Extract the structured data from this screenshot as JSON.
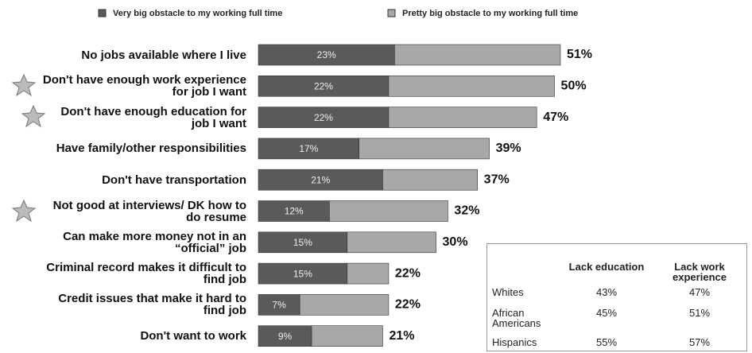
{
  "chart_data": {
    "type": "stacked-bar-horizontal",
    "categories": [
      "No jobs available where I live",
      "Don't have enough work experience for job I want",
      "Don't have enough education for job I want",
      "Have family/other responsibilities",
      "Don't have transportation",
      "Not good at interviews/ DK how to do resume",
      "Can make more money not in an “official” job",
      "Criminal record makes it difficult to find job",
      "Credit issues that make it hard to find job",
      "Don't want to work"
    ],
    "series": [
      {
        "name": "Very big obstacle to my working full time",
        "color": "#5a5a5a",
        "values": [
          23,
          22,
          22,
          17,
          21,
          12,
          15,
          15,
          7,
          9
        ],
        "value_labels": [
          "23%",
          "22%",
          "22%",
          "17%",
          "21%",
          "12%",
          "15%",
          "15%",
          "7%",
          "9%"
        ]
      },
      {
        "name": "Pretty big obstacle to my working full time",
        "color": "#a8a8a8",
        "values": [
          28,
          28,
          25,
          22,
          16,
          20,
          15,
          7,
          15,
          12
        ]
      }
    ],
    "totals": [
      51,
      50,
      47,
      39,
      37,
      32,
      30,
      22,
      22,
      21
    ],
    "total_labels": [
      "51%",
      "50%",
      "47%",
      "39%",
      "37%",
      "32%",
      "30%",
      "22%",
      "22%",
      "21%"
    ]
  },
  "table": {
    "columns": [
      "Lack education",
      "Lack work experience"
    ],
    "rows": [
      [
        "Whites",
        "43%",
        "47%"
      ],
      [
        "African Americans",
        "45%",
        "51%"
      ],
      [
        "Hispanics",
        "55%",
        "57%"
      ]
    ]
  }
}
